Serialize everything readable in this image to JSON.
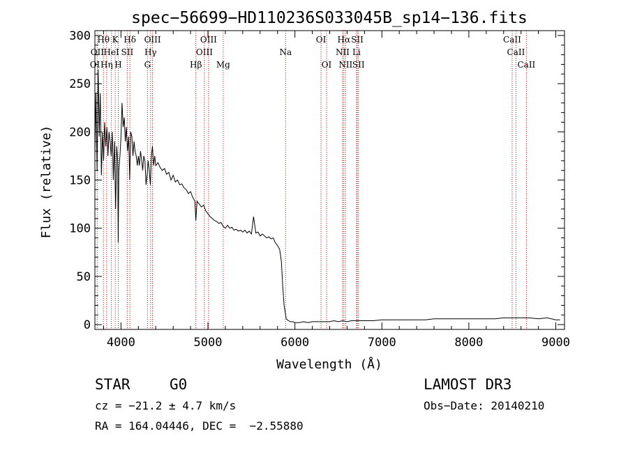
{
  "chart_data": {
    "type": "line",
    "title": "spec−56699−HD110236S033045B_sp14−136.fits",
    "xlabel": "Wavelength (Å)",
    "ylabel": "Flux (relative)",
    "xlim": [
      3700,
      9100
    ],
    "ylim": [
      -5,
      305
    ],
    "x_ticks": [
      4000,
      5000,
      6000,
      7000,
      8000,
      9000
    ],
    "y_ticks": [
      0,
      50,
      100,
      150,
      200,
      250,
      300
    ],
    "grid": false,
    "colors": {
      "spectrum": "#000000",
      "line_markers": "#cc0000"
    },
    "series": [
      {
        "points": [
          [
            3700,
            175
          ],
          [
            3712,
            240
          ],
          [
            3725,
            160
          ],
          [
            3738,
            265
          ],
          [
            3750,
            195
          ],
          [
            3762,
            240
          ],
          [
            3775,
            155
          ],
          [
            3788,
            200
          ],
          [
            3800,
            170
          ],
          [
            3812,
            210
          ],
          [
            3825,
            185
          ],
          [
            3838,
            205
          ],
          [
            3850,
            175
          ],
          [
            3862,
            200
          ],
          [
            3875,
            190
          ],
          [
            3888,
            175
          ],
          [
            3900,
            200
          ],
          [
            3912,
            150
          ],
          [
            3925,
            190
          ],
          [
            3938,
            120
          ],
          [
            3950,
            185
          ],
          [
            3962,
            170
          ],
          [
            3968,
            85
          ],
          [
            3975,
            160
          ],
          [
            3988,
            175
          ],
          [
            4000,
            195
          ],
          [
            4012,
            230
          ],
          [
            4025,
            205
          ],
          [
            4038,
            215
          ],
          [
            4050,
            190
          ],
          [
            4062,
            205
          ],
          [
            4075,
            180
          ],
          [
            4088,
            195
          ],
          [
            4100,
            150
          ],
          [
            4112,
            200
          ],
          [
            4125,
            195
          ],
          [
            4138,
            175
          ],
          [
            4150,
            190
          ],
          [
            4162,
            180
          ],
          [
            4175,
            175
          ],
          [
            4188,
            165
          ],
          [
            4200,
            175
          ],
          [
            4212,
            165
          ],
          [
            4225,
            180
          ],
          [
            4238,
            170
          ],
          [
            4250,
            160
          ],
          [
            4262,
            175
          ],
          [
            4275,
            170
          ],
          [
            4288,
            145
          ],
          [
            4300,
            155
          ],
          [
            4312,
            170
          ],
          [
            4325,
            160
          ],
          [
            4338,
            145
          ],
          [
            4350,
            175
          ],
          [
            4362,
            185
          ],
          [
            4375,
            165
          ],
          [
            4388,
            175
          ],
          [
            4400,
            165
          ],
          [
            4425,
            168
          ],
          [
            4450,
            163
          ],
          [
            4475,
            160
          ],
          [
            4500,
            162
          ],
          [
            4525,
            156
          ],
          [
            4550,
            158
          ],
          [
            4575,
            150
          ],
          [
            4600,
            155
          ],
          [
            4625,
            148
          ],
          [
            4650,
            150
          ],
          [
            4675,
            145
          ],
          [
            4700,
            146
          ],
          [
            4725,
            142
          ],
          [
            4750,
            140
          ],
          [
            4775,
            136
          ],
          [
            4800,
            138
          ],
          [
            4825,
            132
          ],
          [
            4850,
            128
          ],
          [
            4861,
            108
          ],
          [
            4875,
            128
          ],
          [
            4900,
            125
          ],
          [
            4925,
            122
          ],
          [
            4950,
            124
          ],
          [
            4975,
            118
          ],
          [
            5000,
            115
          ],
          [
            5025,
            112
          ],
          [
            5050,
            110
          ],
          [
            5075,
            108
          ],
          [
            5100,
            107
          ],
          [
            5125,
            105
          ],
          [
            5150,
            106
          ],
          [
            5175,
            102
          ],
          [
            5200,
            100
          ],
          [
            5225,
            103
          ],
          [
            5250,
            100
          ],
          [
            5275,
            101
          ],
          [
            5300,
            98
          ],
          [
            5325,
            99
          ],
          [
            5350,
            97
          ],
          [
            5375,
            98
          ],
          [
            5400,
            96
          ],
          [
            5425,
            98
          ],
          [
            5450,
            95
          ],
          [
            5475,
            97
          ],
          [
            5500,
            94
          ],
          [
            5525,
            112
          ],
          [
            5550,
            95
          ],
          [
            5575,
            96
          ],
          [
            5600,
            92
          ],
          [
            5625,
            94
          ],
          [
            5650,
            92
          ],
          [
            5675,
            90
          ],
          [
            5700,
            91
          ],
          [
            5725,
            89
          ],
          [
            5750,
            90
          ],
          [
            5775,
            85
          ],
          [
            5800,
            82
          ],
          [
            5825,
            78
          ],
          [
            5845,
            65
          ],
          [
            5860,
            40
          ],
          [
            5875,
            20
          ],
          [
            5890,
            12
          ],
          [
            5900,
            6
          ],
          [
            5925,
            4
          ],
          [
            5950,
            3
          ],
          [
            5975,
            3
          ],
          [
            6000,
            2
          ],
          [
            6050,
            2
          ],
          [
            6100,
            3
          ],
          [
            6150,
            2
          ],
          [
            6200,
            3
          ],
          [
            6250,
            3
          ],
          [
            6300,
            3
          ],
          [
            6350,
            3
          ],
          [
            6400,
            3
          ],
          [
            6450,
            4
          ],
          [
            6500,
            3
          ],
          [
            6550,
            4
          ],
          [
            6600,
            3
          ],
          [
            6650,
            4
          ],
          [
            6700,
            4
          ],
          [
            6750,
            4
          ],
          [
            6800,
            4
          ],
          [
            6900,
            4
          ],
          [
            7000,
            5
          ],
          [
            7100,
            5
          ],
          [
            7200,
            5
          ],
          [
            7300,
            5
          ],
          [
            7400,
            5
          ],
          [
            7500,
            5
          ],
          [
            7600,
            6
          ],
          [
            7700,
            6
          ],
          [
            7800,
            6
          ],
          [
            7900,
            6
          ],
          [
            8000,
            6
          ],
          [
            8100,
            6
          ],
          [
            8200,
            6
          ],
          [
            8300,
            6
          ],
          [
            8400,
            7
          ],
          [
            8500,
            7
          ],
          [
            8600,
            7
          ],
          [
            8700,
            7
          ],
          [
            8800,
            6
          ],
          [
            8900,
            7
          ],
          [
            9000,
            5
          ],
          [
            9050,
            5
          ]
        ]
      }
    ],
    "line_labels": [
      {
        "text": "Hθ",
        "x": 3798,
        "row": 0
      },
      {
        "text": "K",
        "x": 3934,
        "row": 0
      },
      {
        "text": "Hδ",
        "x": 4102,
        "row": 0
      },
      {
        "text": "OIII",
        "x": 4363,
        "row": 0
      },
      {
        "text": "OIII",
        "x": 5007,
        "row": 0
      },
      {
        "text": "OI",
        "x": 6300,
        "row": 0
      },
      {
        "text": "Hα",
        "x": 6563,
        "row": 0
      },
      {
        "text": "SII",
        "x": 6717,
        "row": 0
      },
      {
        "text": "CaII",
        "x": 8498,
        "row": 0
      },
      {
        "text": "OII",
        "x": 3727,
        "row": 1
      },
      {
        "text": "HeI",
        "x": 3889,
        "row": 1
      },
      {
        "text": "SII",
        "x": 4072,
        "row": 1
      },
      {
        "text": "Hγ",
        "x": 4340,
        "row": 1
      },
      {
        "text": "OIII",
        "x": 4959,
        "row": 1
      },
      {
        "text": "Na",
        "x": 5893,
        "row": 1
      },
      {
        "text": "NII",
        "x": 6548,
        "row": 1
      },
      {
        "text": "Li",
        "x": 6708,
        "row": 1
      },
      {
        "text": "CaII",
        "x": 8542,
        "row": 1
      },
      {
        "text": "OI",
        "x": 3700,
        "row": 2
      },
      {
        "text": "Hη",
        "x": 3835,
        "row": 2
      },
      {
        "text": "H",
        "x": 3969,
        "row": 2
      },
      {
        "text": "G",
        "x": 4305,
        "row": 2
      },
      {
        "text": "Hβ",
        "x": 4861,
        "row": 2
      },
      {
        "text": "Mg",
        "x": 5175,
        "row": 2
      },
      {
        "text": "OI",
        "x": 6364,
        "row": 2
      },
      {
        "text": "NII",
        "x": 6583,
        "row": 2
      },
      {
        "text": "SII",
        "x": 6731,
        "row": 2
      },
      {
        "text": "CaII",
        "x": 8662,
        "row": 2
      }
    ],
    "line_markers": [
      3727,
      3798,
      3835,
      3889,
      3934,
      3969,
      4072,
      4102,
      4305,
      4340,
      4363,
      4861,
      4959,
      5007,
      5175,
      5893,
      6300,
      6364,
      6548,
      6563,
      6583,
      6708,
      6717,
      6731,
      8498,
      8542,
      8662
    ]
  },
  "info": {
    "class_label": "STAR",
    "subclass": "G0",
    "survey": "LAMOST DR3",
    "velocity": "cz = −21.2 ± 4.7 km/s",
    "obs_date": "Obs−Date: 20140210",
    "coords": "RA = 164.04446, DEC =  −2.55880"
  }
}
